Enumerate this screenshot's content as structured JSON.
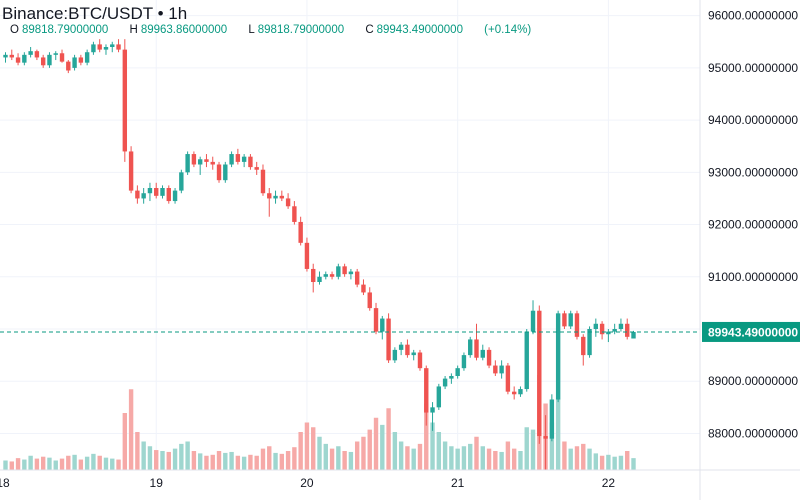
{
  "header": {
    "title": "Binance:BTC/USDT • 1h",
    "ohlc": [
      {
        "key": "O",
        "value": "89818.79000000"
      },
      {
        "key": "H",
        "value": "89963.86000000"
      },
      {
        "key": "L",
        "value": "89818.79000000"
      },
      {
        "key": "C",
        "value": "89943.49000000"
      }
    ],
    "change": "(+0.14%)"
  },
  "colors": {
    "up": "#26a69a",
    "down": "#ef5350",
    "up_volume": "#9ed6cf",
    "down_volume": "#f6a9a7",
    "price_line": "#089981",
    "grid": "#f0f3fa",
    "axis_text": "#131722"
  },
  "chart_data": {
    "type": "candlestick",
    "symbol": "BTC/USDT",
    "exchange": "Binance",
    "interval": "1h",
    "ylim": [
      87300,
      96300
    ],
    "y_ticks": [
      "96000.00000000",
      "95000.00000000",
      "94000.00000000",
      "93000.00000000",
      "92000.00000000",
      "91000.00000000",
      "90000.00000000",
      "89000.00000000",
      "88000.00000000"
    ],
    "y_tick_values": [
      96000,
      95000,
      94000,
      93000,
      92000,
      91000,
      90000,
      89000,
      88000
    ],
    "x_ticks": [
      {
        "label": "18",
        "index": -1
      },
      {
        "label": "19",
        "index": 24
      },
      {
        "label": "20",
        "index": 48
      },
      {
        "label": "21",
        "index": 72
      },
      {
        "label": "22",
        "index": 96
      }
    ],
    "last_price": {
      "value": 89943.49,
      "label": "89943.49000000"
    },
    "grid": true,
    "candles": [
      [
        95200,
        95300,
        95100,
        95250,
        20
      ],
      [
        95250,
        95350,
        95150,
        95200,
        18
      ],
      [
        95200,
        95280,
        95050,
        95100,
        25
      ],
      [
        95100,
        95300,
        95050,
        95250,
        22
      ],
      [
        95250,
        95400,
        95200,
        95320,
        30
      ],
      [
        95320,
        95350,
        95150,
        95200,
        24
      ],
      [
        95200,
        95250,
        95000,
        95050,
        28
      ],
      [
        95050,
        95300,
        95000,
        95250,
        26
      ],
      [
        95250,
        95320,
        95150,
        95280,
        20
      ],
      [
        95280,
        95350,
        95100,
        95120,
        24
      ],
      [
        95120,
        95150,
        94900,
        94950,
        30
      ],
      [
        95000,
        95250,
        94950,
        95200,
        32
      ],
      [
        95200,
        95250,
        95050,
        95100,
        22
      ],
      [
        95100,
        95350,
        95050,
        95300,
        28
      ],
      [
        95300,
        95500,
        95250,
        95450,
        34
      ],
      [
        95450,
        95550,
        95300,
        95350,
        30
      ],
      [
        95350,
        95450,
        95250,
        95400,
        26
      ],
      [
        95400,
        95500,
        95300,
        95450,
        24
      ],
      [
        95450,
        95550,
        95300,
        95350,
        22
      ],
      [
        95350,
        95550,
        93200,
        93400,
        120
      ],
      [
        93400,
        93500,
        92600,
        92650,
        170
      ],
      [
        92650,
        92750,
        92400,
        92500,
        80
      ],
      [
        92500,
        92700,
        92400,
        92600,
        60
      ],
      [
        92600,
        92800,
        92450,
        92700,
        50
      ],
      [
        92700,
        92800,
        92500,
        92550,
        42
      ],
      [
        92550,
        92750,
        92500,
        92700,
        40
      ],
      [
        92700,
        92750,
        92400,
        92450,
        38
      ],
      [
        92450,
        92700,
        92400,
        92650,
        45
      ],
      [
        92650,
        93050,
        92600,
        93000,
        55
      ],
      [
        93000,
        93400,
        92950,
        93350,
        60
      ],
      [
        93350,
        93400,
        93100,
        93150,
        40
      ],
      [
        93150,
        93300,
        92950,
        93250,
        35
      ],
      [
        93250,
        93350,
        93100,
        93200,
        30
      ],
      [
        93200,
        93300,
        93050,
        93150,
        32
      ],
      [
        93150,
        93200,
        92800,
        92850,
        40
      ],
      [
        92850,
        93200,
        92800,
        93150,
        36
      ],
      [
        93150,
        93400,
        93100,
        93350,
        38
      ],
      [
        93350,
        93450,
        93150,
        93200,
        30
      ],
      [
        93200,
        93350,
        93100,
        93300,
        28
      ],
      [
        93300,
        93350,
        93050,
        93100,
        32
      ],
      [
        93100,
        93200,
        92950,
        93050,
        30
      ],
      [
        93050,
        93150,
        92550,
        92600,
        45
      ],
      [
        92600,
        92700,
        92150,
        92500,
        50
      ],
      [
        92500,
        92650,
        92400,
        92550,
        36
      ],
      [
        92550,
        92650,
        92450,
        92500,
        34
      ],
      [
        92500,
        92600,
        92300,
        92350,
        40
      ],
      [
        92350,
        92450,
        92000,
        92050,
        48
      ],
      [
        92050,
        92150,
        91600,
        91650,
        80
      ],
      [
        91650,
        91750,
        91100,
        91150,
        100
      ],
      [
        91150,
        91250,
        90700,
        90900,
        90
      ],
      [
        90900,
        91100,
        90850,
        91000,
        70
      ],
      [
        91000,
        91100,
        90950,
        91050,
        55
      ],
      [
        91050,
        91100,
        90950,
        91000,
        45
      ],
      [
        91000,
        91250,
        90950,
        91200,
        50
      ],
      [
        91200,
        91250,
        91000,
        91050,
        40
      ],
      [
        91050,
        91150,
        90950,
        91100,
        38
      ],
      [
        91100,
        91150,
        90800,
        90850,
        60
      ],
      [
        90850,
        90950,
        90650,
        90700,
        70
      ],
      [
        90700,
        90800,
        90350,
        90400,
        85
      ],
      [
        90400,
        90500,
        89900,
        89950,
        110
      ],
      [
        89950,
        90250,
        89800,
        90200,
        95
      ],
      [
        90200,
        90300,
        89350,
        89400,
        130
      ],
      [
        89400,
        89650,
        89350,
        89600,
        80
      ],
      [
        89600,
        89750,
        89500,
        89700,
        60
      ],
      [
        89700,
        89800,
        89450,
        89500,
        50
      ],
      [
        89500,
        89600,
        89400,
        89550,
        45
      ],
      [
        89550,
        89600,
        89200,
        89250,
        55
      ],
      [
        89250,
        89300,
        88150,
        88400,
        140
      ],
      [
        88400,
        88600,
        88050,
        88500,
        100
      ],
      [
        88500,
        88950,
        88450,
        88900,
        80
      ],
      [
        88900,
        89100,
        88850,
        89050,
        60
      ],
      [
        89050,
        89150,
        88950,
        89100,
        50
      ],
      [
        89100,
        89300,
        89050,
        89250,
        45
      ],
      [
        89250,
        89550,
        89200,
        89500,
        50
      ],
      [
        89500,
        89850,
        89450,
        89800,
        55
      ],
      [
        89800,
        90100,
        89400,
        89450,
        70
      ],
      [
        89450,
        89700,
        89400,
        89600,
        50
      ],
      [
        89600,
        89650,
        89250,
        89300,
        45
      ],
      [
        89300,
        89400,
        89100,
        89150,
        40
      ],
      [
        89150,
        89400,
        89050,
        89300,
        38
      ],
      [
        89300,
        89350,
        88750,
        88800,
        60
      ],
      [
        88800,
        88900,
        88650,
        88750,
        45
      ],
      [
        88750,
        88900,
        88700,
        88850,
        40
      ],
      [
        88850,
        90000,
        88800,
        89950,
        90
      ],
      [
        89950,
        90550,
        89900,
        90350,
        85
      ],
      [
        90350,
        90450,
        87800,
        87950,
        200
      ],
      [
        87950,
        88350,
        87300,
        87900,
        140
      ],
      [
        87900,
        88750,
        87850,
        88650,
        100
      ],
      [
        88650,
        90350,
        88600,
        90300,
        150
      ],
      [
        90300,
        90350,
        90000,
        90050,
        60
      ],
      [
        90050,
        90350,
        90000,
        90300,
        45
      ],
      [
        90300,
        90350,
        89800,
        89850,
        50
      ],
      [
        89850,
        89900,
        89300,
        89500,
        55
      ],
      [
        89500,
        90050,
        89450,
        90000,
        45
      ],
      [
        90000,
        90200,
        89850,
        90100,
        35
      ],
      [
        90100,
        90150,
        89800,
        89900,
        30
      ],
      [
        89900,
        90000,
        89750,
        89950,
        32
      ],
      [
        89950,
        90100,
        89900,
        90000,
        28
      ],
      [
        90000,
        90200,
        89950,
        90100,
        30
      ],
      [
        90100,
        90200,
        89800,
        89850,
        40
      ],
      [
        89818,
        89963,
        89818,
        89943,
        25
      ]
    ]
  }
}
